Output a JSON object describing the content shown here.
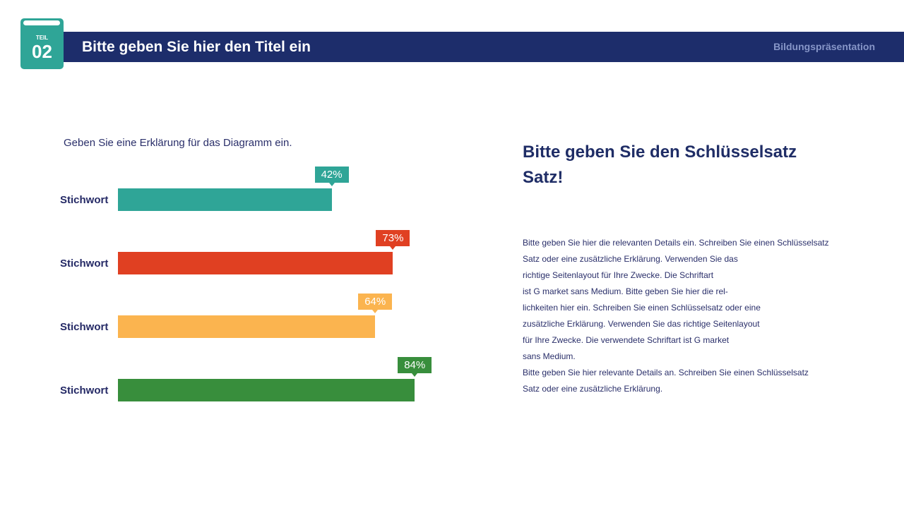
{
  "header": {
    "part_label": "TEIL",
    "part_number": "02",
    "title": "Bitte geben Sie hier den Titel ein",
    "subtitle": "Bildungspräsentation",
    "color": "#1d2d6b"
  },
  "chart_data": {
    "type": "bar",
    "orientation": "horizontal",
    "caption": "Geben Sie eine Erklärung für das Diagramm ein.",
    "categories": [
      "Stichwort",
      "Stichwort",
      "Stichwort",
      "Stichwort"
    ],
    "values": [
      42,
      73,
      64,
      84
    ],
    "labels": [
      "42%",
      "73%",
      "64%",
      "84%"
    ],
    "colors": [
      "#2fa597",
      "#e04022",
      "#fbb44f",
      "#388e3c"
    ],
    "unit": "%",
    "grid": false
  },
  "right": {
    "key_sentence": "Bitte geben Sie den Schlüsselsatz Satz!",
    "lines": [
      "Bitte geben Sie hier die relevanten Details ein. Schreiben Sie einen Schlüsselsatz",
      "Satz oder eine zusätzliche Erklärung. Verwenden Sie das",
      "richtige Seitenlayout für Ihre Zwecke. Die Schriftart",
      "ist G market sans Medium. Bitte geben Sie hier die rel-",
      "lichkeiten hier ein. Schreiben Sie einen Schlüsselsatz oder eine",
      "zusätzliche Erklärung. Verwenden Sie das richtige Seitenlayout",
      "für Ihre Zwecke. Die verwendete Schriftart ist G market",
      "sans Medium.",
      "Bitte geben Sie hier relevante Details an. Schreiben Sie einen Schlüsselsatz",
      "Satz oder eine zusätzliche Erklärung."
    ]
  }
}
